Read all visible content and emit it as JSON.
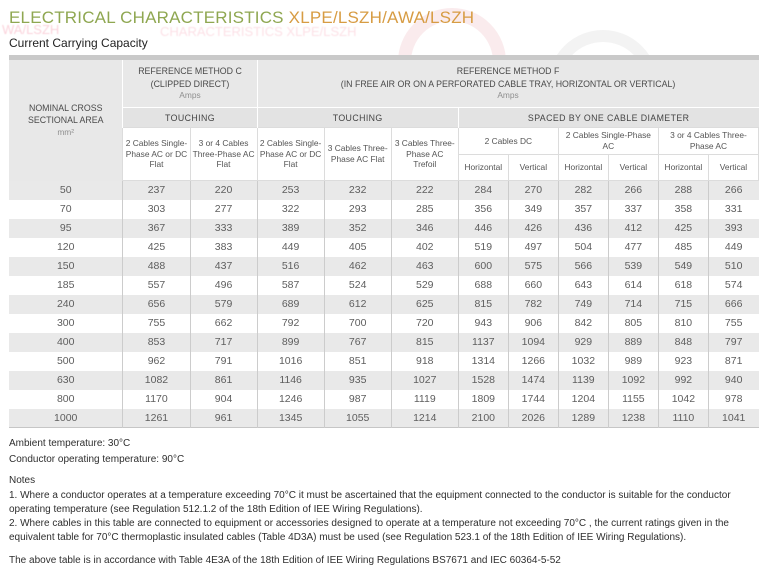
{
  "header": {
    "title_main": "ELECTRICAL CHARACTERISTICS",
    "title_suffix": "XLPE/LSZH/AWA/LSZH",
    "subtitle": "Current Carrying Capacity",
    "title_main_color": "#8fa751",
    "title_suffix_color": "#d79c43"
  },
  "artifacts": {
    "ghost_text_left": "WA/LSZH",
    "ghost_text_center": "CHARACTERISTICS XLPE/LSZH"
  },
  "table": {
    "nominal": {
      "title": "NOMINAL CROSS SECTIONAL AREA",
      "unit": "mm²"
    },
    "method_c": {
      "title": "REFERENCE METHOD C",
      "subtitle": "(CLIPPED DIRECT)",
      "unit": "Amps"
    },
    "method_f": {
      "title": "REFERENCE METHOD F",
      "subtitle": "(IN FREE AIR OR ON A PERFORATED CABLE TRAY, HORIZONTAL OR VERTICAL)",
      "unit": "Amps"
    },
    "bands": [
      "TOUCHING",
      "TOUCHING",
      "SPACED BY ONE CABLE DIAMETER"
    ],
    "touch_columns": [
      "2 Cables Single-Phase AC or DC Flat",
      "3 or 4 Cables Three-Phase AC Flat",
      "2 Cables Single-Phase AC or DC Flat",
      "3 Cables Three-Phase AC Flat",
      "3 Cables Three-Phase AC Trefoil"
    ],
    "spaced_groups": [
      "2 Cables DC",
      "2 Cables Single-Phase AC",
      "3 or 4 Cables Three-Phase AC"
    ],
    "hv_labels": [
      "Horizontal",
      "Vertical"
    ],
    "rows": [
      [
        "50",
        "237",
        "220",
        "253",
        "232",
        "222",
        "284",
        "270",
        "282",
        "266",
        "288",
        "266"
      ],
      [
        "70",
        "303",
        "277",
        "322",
        "293",
        "285",
        "356",
        "349",
        "357",
        "337",
        "358",
        "331"
      ],
      [
        "95",
        "367",
        "333",
        "389",
        "352",
        "346",
        "446",
        "426",
        "436",
        "412",
        "425",
        "393"
      ],
      [
        "120",
        "425",
        "383",
        "449",
        "405",
        "402",
        "519",
        "497",
        "504",
        "477",
        "485",
        "449"
      ],
      [
        "150",
        "488",
        "437",
        "516",
        "462",
        "463",
        "600",
        "575",
        "566",
        "539",
        "549",
        "510"
      ],
      [
        "185",
        "557",
        "496",
        "587",
        "524",
        "529",
        "688",
        "660",
        "643",
        "614",
        "618",
        "574"
      ],
      [
        "240",
        "656",
        "579",
        "689",
        "612",
        "625",
        "815",
        "782",
        "749",
        "714",
        "715",
        "666"
      ],
      [
        "300",
        "755",
        "662",
        "792",
        "700",
        "720",
        "943",
        "906",
        "842",
        "805",
        "810",
        "755"
      ],
      [
        "400",
        "853",
        "717",
        "899",
        "767",
        "815",
        "1137",
        "1094",
        "929",
        "889",
        "848",
        "797"
      ],
      [
        "500",
        "962",
        "791",
        "1016",
        "851",
        "918",
        "1314",
        "1266",
        "1032",
        "989",
        "923",
        "871"
      ],
      [
        "630",
        "1082",
        "861",
        "1146",
        "935",
        "1027",
        "1528",
        "1474",
        "1139",
        "1092",
        "992",
        "940"
      ],
      [
        "800",
        "1170",
        "904",
        "1246",
        "987",
        "1119",
        "1809",
        "1744",
        "1204",
        "1155",
        "1042",
        "978"
      ],
      [
        "1000",
        "1261",
        "961",
        "1345",
        "1055",
        "1214",
        "2100",
        "2026",
        "1289",
        "1238",
        "1110",
        "1041"
      ]
    ]
  },
  "footer": {
    "ambient": "Ambient temperature: 30°C",
    "operating": "Conductor operating temperature: 90°C",
    "notes_title": "Notes",
    "note1": "1.  Where a conductor operates at a temperature exceeding 70°C it must be ascertained that the equipment connected to the conductor is suitable for the conductor operating temperature (see Regulation 512.1.2 of the 18th Edition of IEE Wiring Regulations).",
    "note2": "2.  Where cables in this table are connected to equipment or accessories designed to operate at a temperature not exceeding 70°C , the current ratings given in the equivalent table for 70°C thermoplastic insulated cables (Table 4D3A) must be used (see Regulation 523.1 of the 18th Edition of IEE Wiring Regulations).",
    "accordance": "The above table is in accordance with Table 4E3A of the 18th Edition of IEE Wiring Regulations BS7671 and IEC 60364-5-52"
  }
}
